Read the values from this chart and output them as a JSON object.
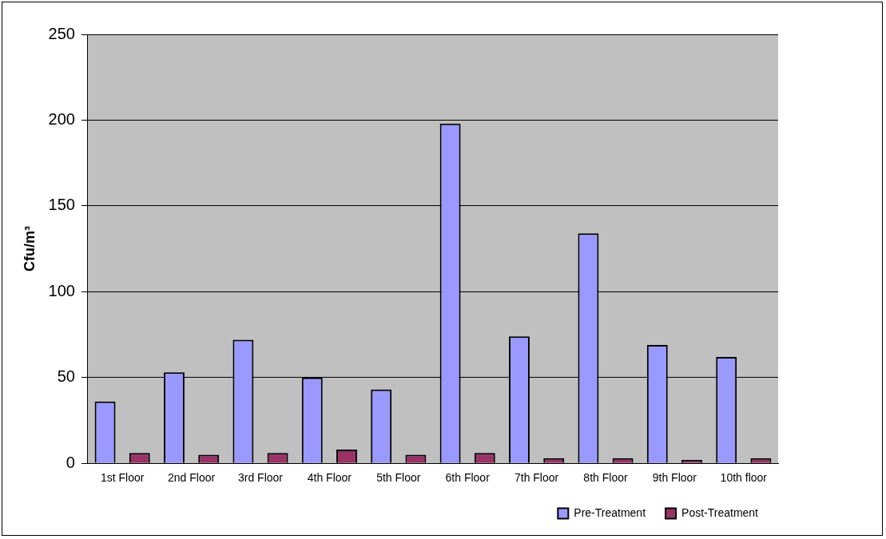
{
  "chart_data": {
    "type": "bar",
    "ylabel": "Cfu/m³",
    "categories": [
      "1st Floor",
      "2nd Floor",
      "3rd Floor",
      "4th Floor",
      "5th Floor",
      "6th Floor",
      "7th Floor",
      "8th Floor",
      "9th Floor",
      "10th floor"
    ],
    "series": [
      {
        "name": "Pre-Treatment",
        "color": "#9999ff",
        "values": [
          36,
          53,
          72,
          50,
          43,
          198,
          74,
          134,
          69,
          62
        ]
      },
      {
        "name": "Post-Treatment",
        "color": "#993366",
        "values": [
          6,
          5,
          6,
          8,
          5,
          6,
          3,
          3,
          2,
          3
        ]
      }
    ],
    "ylim": [
      0,
      250
    ],
    "yticks": [
      0,
      50,
      100,
      150,
      200,
      250
    ],
    "grid": "y",
    "legend": "bottom right"
  }
}
